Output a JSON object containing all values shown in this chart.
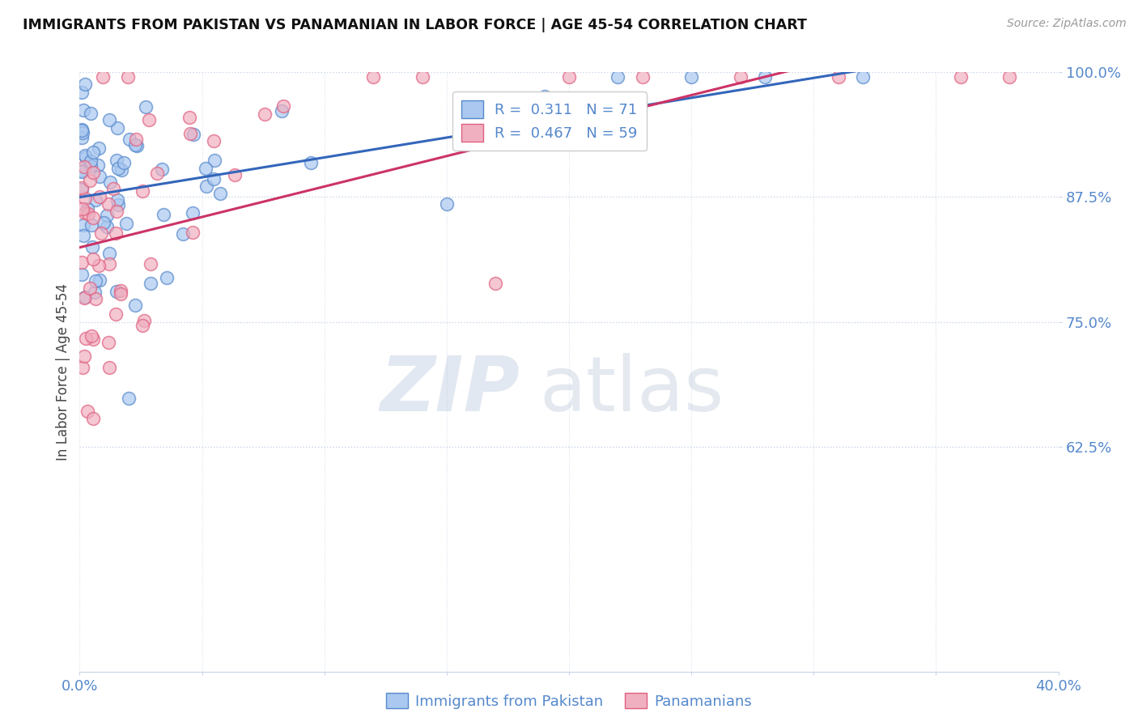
{
  "title": "IMMIGRANTS FROM PAKISTAN VS PANAMANIAN IN LABOR FORCE | AGE 45-54 CORRELATION CHART",
  "source": "Source: ZipAtlas.com",
  "ylabel": "In Labor Force | Age 45-54",
  "xlim": [
    0.0,
    0.4
  ],
  "ylim": [
    0.4,
    1.0
  ],
  "xticks": [
    0.0,
    0.05,
    0.1,
    0.15,
    0.2,
    0.25,
    0.3,
    0.35,
    0.4
  ],
  "xtick_labels": [
    "0.0%",
    "",
    "",
    "",
    "",
    "",
    "",
    "",
    "40.0%"
  ],
  "yticks": [
    0.625,
    0.75,
    0.875,
    1.0
  ],
  "ytick_labels": [
    "62.5%",
    "75.0%",
    "87.5%",
    "100.0%"
  ],
  "pakistan_fill": "#aac8f0",
  "panama_fill": "#f0b0c0",
  "pakistan_edge": "#5588cc",
  "panama_edge": "#e06080",
  "pakistan_line": "#3366bb",
  "panama_line": "#cc3366",
  "R_pakistan": 0.311,
  "N_pakistan": 71,
  "R_panama": 0.467,
  "N_panama": 59,
  "legend_label_pakistan": "Immigrants from Pakistan",
  "legend_label_panama": "Panamanians",
  "watermark_zip": "ZIP",
  "watermark_atlas": "atlas",
  "background_color": "#ffffff",
  "grid_color": "#c8d4e8",
  "title_color": "#111111",
  "tick_color": "#5588cc",
  "ylabel_color": "#444444"
}
